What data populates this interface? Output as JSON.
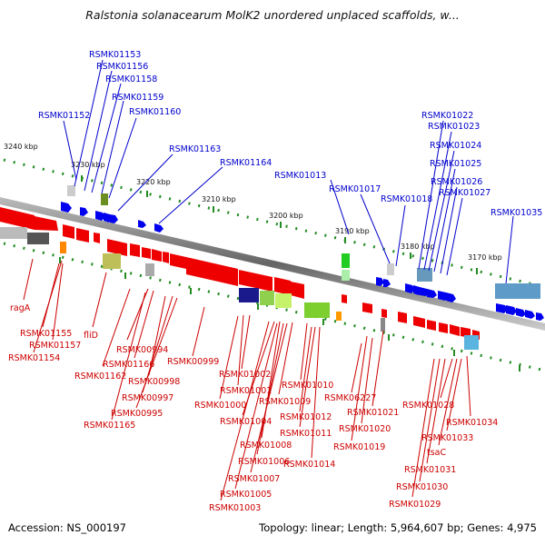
{
  "title": "Ralstonia solanacearum MolK2 unordered unplaced scaffolds, w...",
  "footer": {
    "accession": "Accession: NS_000197",
    "info": "Topology: linear; Length: 5,964,607 bp; Genes: 4,975"
  },
  "colors": {
    "top_label": "#0000cc",
    "bottom_label": "#cc0000",
    "forward_gene": "#0000ee",
    "reverse_gene": "#ee0000",
    "backbone": "#888888",
    "tick": "#228b22"
  },
  "scale_labels": [
    "3240 kbp",
    "3230 kbp",
    "3220 kbp",
    "3210 kbp",
    "3200 kbp",
    "3190 kbp",
    "3180 kbp",
    "3170 kbp"
  ],
  "top_labels": [
    "RSMK01153",
    "RSMK01156",
    "RSMK01158",
    "RSMK01159",
    "RSMK01152",
    "RSMK01160",
    "RSMK01163",
    "RSMK01164",
    "RSMK01013",
    "RSMK01017",
    "RSMK01018",
    "RSMK01022",
    "RSMK01023",
    "RSMK01024",
    "RSMK01025",
    "RSMK01026",
    "RSMK01027",
    "RSMK01035"
  ],
  "bottom_labels": [
    "ragA",
    "RSMK01155",
    "RSMK01157",
    "RSMK01154",
    "fliD",
    "RSMK01162",
    "RSMK00994",
    "RSMK01166",
    "RSMK00998",
    "RSMK00997",
    "RSMK00995",
    "RSMK01165",
    "RSMK00999",
    "RSMK01002",
    "RSMK01001",
    "RSMK01000",
    "RSMK01010",
    "RSMK01009",
    "RSMK01004",
    "RSMK01012",
    "RSMK01011",
    "RSMK01008",
    "RSMK01006",
    "RSMK01014",
    "RSMK01007",
    "RSMK01005",
    "RSMK01003",
    "RSMK06227",
    "RSMK01021",
    "RSMK01020",
    "RSMK01019",
    "RSMK01028",
    "RSMK01034",
    "RSMK01033",
    "tsaC",
    "RSMK01031",
    "RSMK01030",
    "RSMK01029"
  ]
}
